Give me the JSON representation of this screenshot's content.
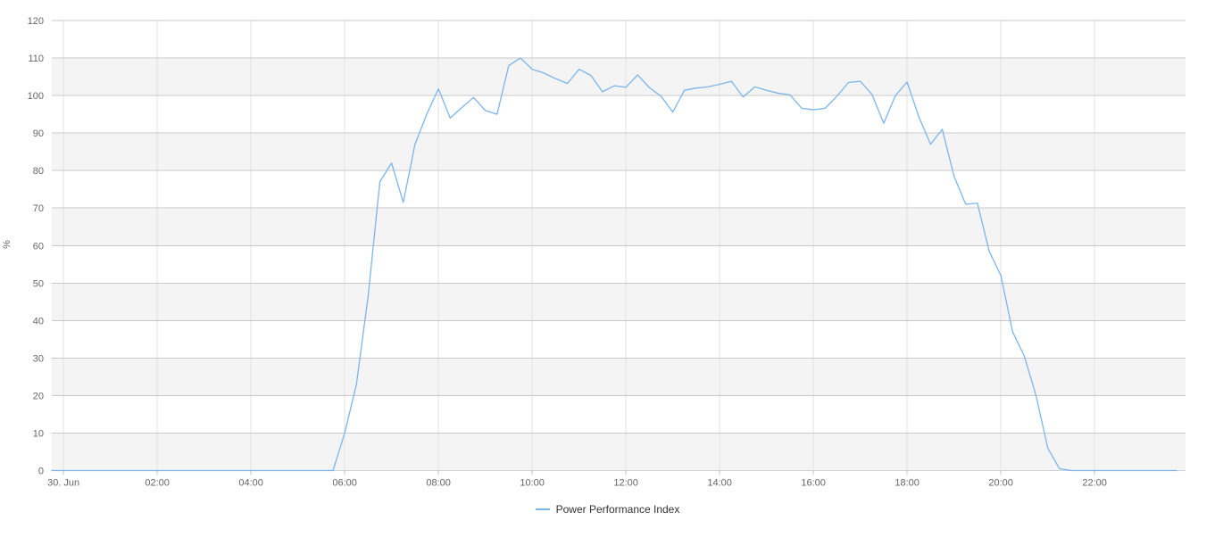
{
  "chart": {
    "colors": {
      "series": "#7cb5ec",
      "band": "#f4f4f4",
      "grid_horizontal": "#c9c9c9",
      "grid_vertical": "#e2e2e2",
      "axis_line": "#ccd1da",
      "tick": "#c2c6cd",
      "axis_label": "#666666",
      "legend_text": "#333333"
    }
  },
  "chart_data": {
    "type": "line",
    "title": "",
    "xlabel": "",
    "ylabel": "%",
    "ylim": [
      0,
      120
    ],
    "y_tick_step": 10,
    "y_tick_labels": [
      "0",
      "10",
      "20",
      "30",
      "40",
      "50",
      "60",
      "70",
      "80",
      "90",
      "100",
      "110",
      "120"
    ],
    "x_tick_labels": [
      "30. Jun",
      "02:00",
      "04:00",
      "06:00",
      "08:00",
      "10:00",
      "12:00",
      "14:00",
      "16:00",
      "18:00",
      "20:00",
      "22:00"
    ],
    "x_tick_hours": [
      0,
      2,
      4,
      6,
      8,
      10,
      12,
      14,
      16,
      18,
      20,
      22
    ],
    "x_axis_range_hours": [
      -0.25,
      23.94
    ],
    "grid": true,
    "alternating_bands": true,
    "legend_position": "bottom-center",
    "series": [
      {
        "name": "Power Performance Index",
        "color": "#7cb5ec",
        "x_start_hours": -0.25,
        "x_step_hours": 0.25,
        "values": [
          0,
          0,
          0,
          0,
          0,
          0,
          0,
          0,
          0,
          0,
          0,
          0,
          0,
          0,
          0,
          0,
          0,
          0,
          0,
          0,
          0,
          0,
          0,
          0,
          0,
          10,
          23,
          46.5,
          77,
          82,
          71.5,
          87,
          95,
          101.8,
          94,
          96.8,
          99.5,
          96,
          95,
          108,
          110,
          107,
          106,
          104.5,
          103.2,
          107,
          105.4,
          101,
          102.6,
          102.2,
          105.5,
          102.1,
          99.8,
          95.6,
          101.4,
          102,
          102.3,
          103,
          103.8,
          99.6,
          102.3,
          101.4,
          100.6,
          100.2,
          96.6,
          96.2,
          96.6,
          99.8,
          103.5,
          103.8,
          100.3,
          92.6,
          100,
          103.6,
          94.3,
          87,
          91,
          78.5,
          71,
          71.3,
          58.5,
          52,
          37,
          30.5,
          20,
          6,
          0.5,
          0,
          0,
          0,
          0,
          0,
          0,
          0,
          0,
          0,
          0
        ]
      }
    ]
  }
}
